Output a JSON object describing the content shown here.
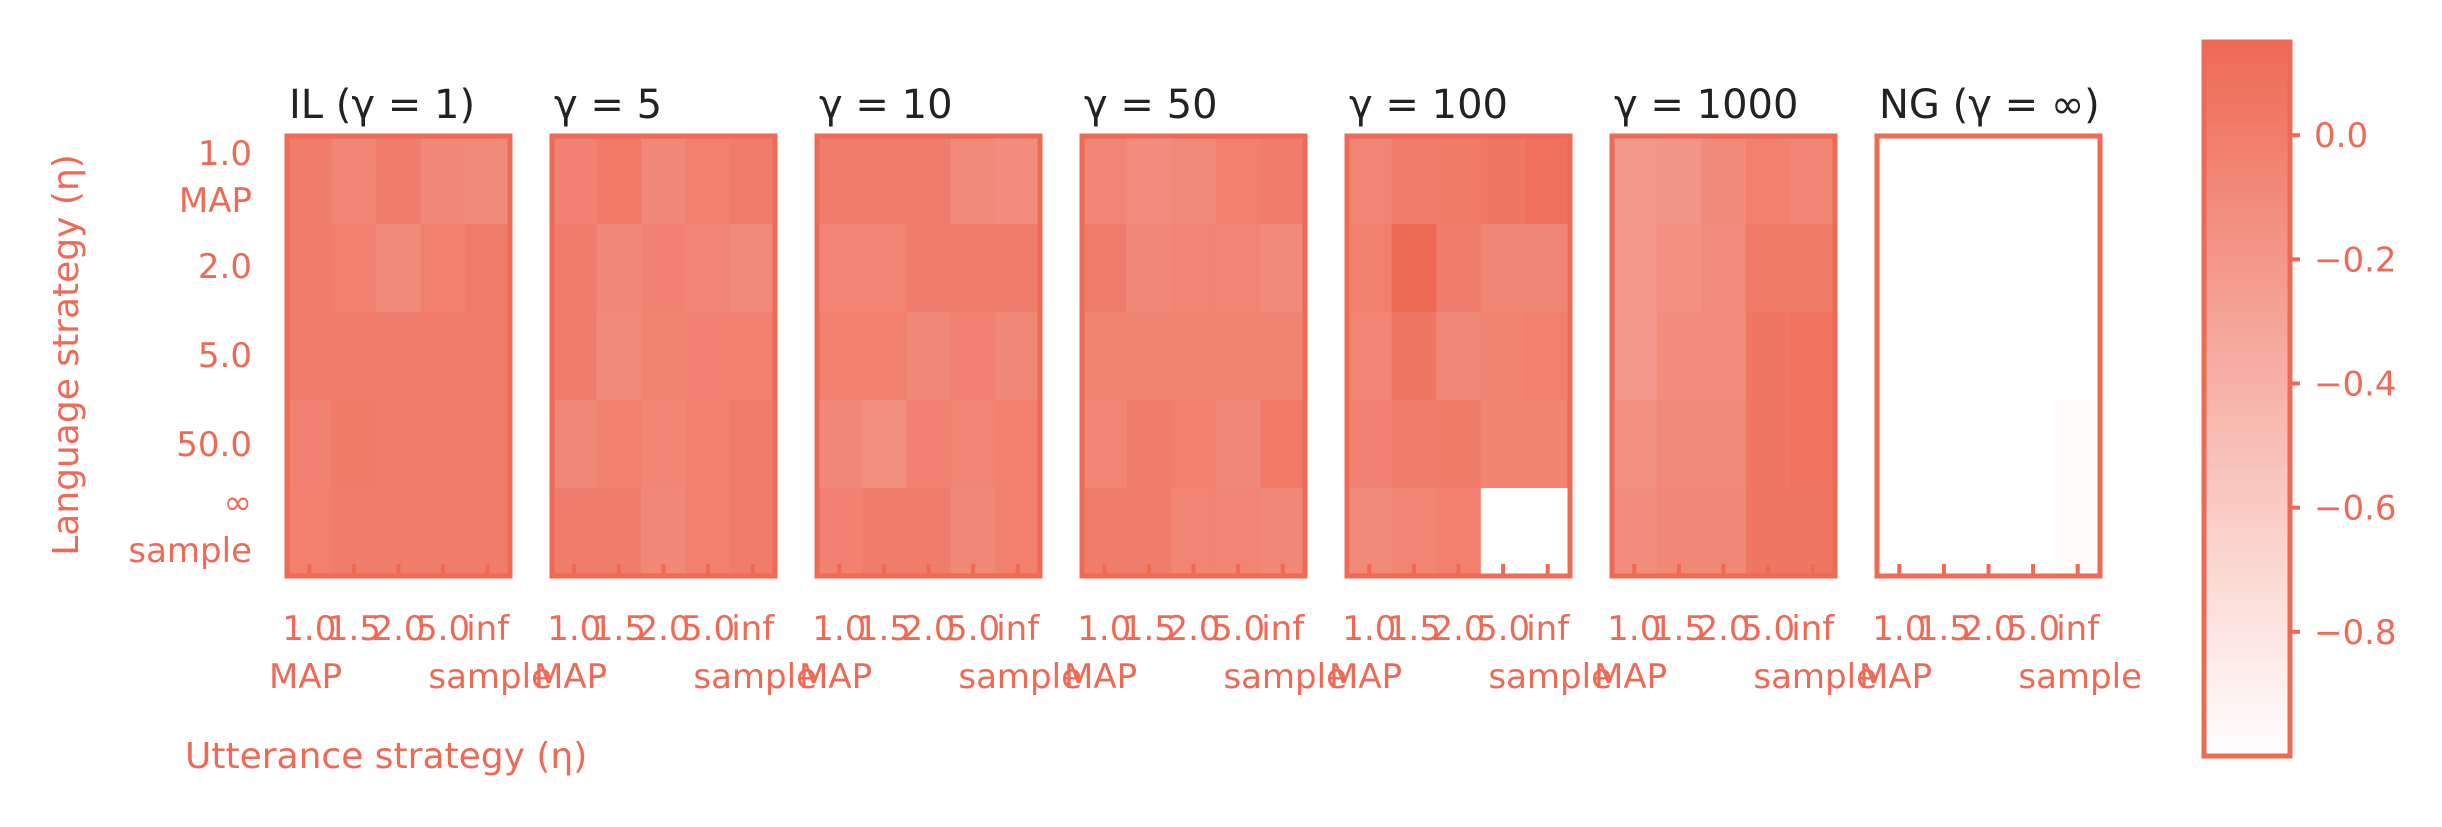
{
  "accent": "#ee6a55",
  "ylabel": "Language strategy (η)",
  "xlabel": "Utterance strategy (η)",
  "y_tick_labels": [
    "1.0",
    "MAP",
    "2.0",
    "5.0",
    "50.0",
    "∞",
    "sample"
  ],
  "x_tick_labels": [
    "1.0",
    "1.5",
    "2.0",
    "5.0",
    "inf"
  ],
  "x_extremes": [
    "MAP",
    "sample"
  ],
  "colorbar": {
    "range": [
      -1.0,
      0.15
    ],
    "ticks": [
      0.0,
      -0.2,
      -0.4,
      -0.6,
      -0.8
    ],
    "tick_labels": [
      "0.0",
      "−0.2",
      "−0.4",
      "−0.6",
      "−0.8"
    ],
    "color_high": "#ee6a55",
    "color_low": "#ffffff"
  },
  "chart_data": {
    "type": "heatmap",
    "panels": [
      {
        "title": "IL (γ = 1)",
        "values": [
          [
            0.0,
            -0.05,
            0.0,
            -0.08,
            -0.1
          ],
          [
            0.0,
            -0.02,
            -0.1,
            -0.02,
            0.0
          ],
          [
            0.0,
            0.0,
            0.0,
            0.0,
            0.0
          ],
          [
            -0.03,
            0.02,
            0.0,
            0.0,
            0.0
          ],
          [
            -0.02,
            0.0,
            0.0,
            0.0,
            0.0
          ]
        ]
      },
      {
        "title": "γ = 5",
        "values": [
          [
            -0.03,
            0.03,
            -0.07,
            -0.02,
            0.0
          ],
          [
            0.0,
            -0.08,
            -0.03,
            -0.05,
            -0.1
          ],
          [
            0.0,
            -0.1,
            -0.04,
            -0.03,
            -0.02
          ],
          [
            -0.08,
            -0.02,
            -0.05,
            -0.02,
            0.0
          ],
          [
            0.0,
            0.0,
            -0.08,
            -0.02,
            0.0
          ]
        ]
      },
      {
        "title": "γ = 10",
        "values": [
          [
            0.0,
            0.0,
            0.0,
            -0.1,
            -0.12
          ],
          [
            -0.05,
            -0.05,
            0.0,
            0.0,
            0.0
          ],
          [
            -0.02,
            -0.02,
            -0.08,
            -0.03,
            -0.08
          ],
          [
            -0.08,
            -0.14,
            -0.03,
            -0.05,
            -0.02
          ],
          [
            -0.03,
            0.0,
            0.0,
            -0.08,
            -0.02
          ]
        ]
      },
      {
        "title": "γ = 50",
        "values": [
          [
            -0.05,
            -0.12,
            -0.1,
            -0.02,
            0.0
          ],
          [
            0.0,
            -0.08,
            -0.05,
            -0.05,
            -0.1
          ],
          [
            -0.04,
            -0.04,
            -0.04,
            -0.04,
            -0.04
          ],
          [
            -0.05,
            0.0,
            -0.02,
            -0.08,
            0.03
          ],
          [
            0.0,
            0.0,
            -0.05,
            -0.05,
            -0.08
          ]
        ]
      },
      {
        "title": "γ = 100",
        "values": [
          [
            -0.05,
            0.0,
            0.02,
            0.05,
            0.1
          ],
          [
            -0.02,
            0.15,
            0.0,
            -0.06,
            -0.06
          ],
          [
            -0.05,
            0.05,
            -0.08,
            -0.04,
            -0.02
          ],
          [
            -0.03,
            0.0,
            0.02,
            -0.04,
            -0.04
          ],
          [
            -0.1,
            -0.05,
            -0.02,
            -1.0,
            -1.0
          ]
        ]
      },
      {
        "title": "γ = 1000",
        "values": [
          [
            -0.22,
            -0.18,
            -0.1,
            -0.02,
            -0.05
          ],
          [
            -0.2,
            -0.15,
            -0.12,
            0.02,
            0.02
          ],
          [
            -0.22,
            -0.12,
            -0.12,
            0.05,
            0.08
          ],
          [
            -0.15,
            -0.1,
            -0.1,
            0.05,
            0.08
          ],
          [
            -0.12,
            -0.08,
            -0.08,
            0.05,
            0.05
          ]
        ]
      },
      {
        "title": "NG (γ = ∞)",
        "values": [
          [
            -1.0,
            -1.0,
            -1.0,
            -1.0,
            -1.0
          ],
          [
            -1.0,
            -1.0,
            -1.0,
            -1.0,
            -1.0
          ],
          [
            -1.0,
            -1.0,
            -1.0,
            -1.0,
            -1.0
          ],
          [
            -1.0,
            -1.0,
            -1.0,
            -1.0,
            -0.97
          ],
          [
            -1.0,
            -1.0,
            -1.0,
            -1.0,
            -0.97
          ]
        ]
      }
    ]
  }
}
